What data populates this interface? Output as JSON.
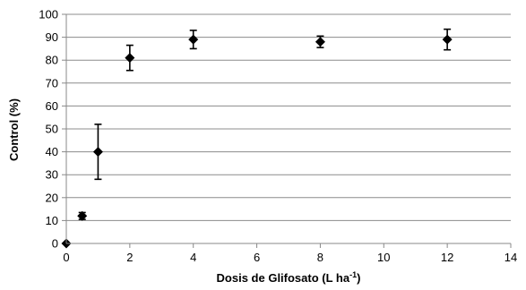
{
  "chart_data": {
    "type": "scatter",
    "title": "",
    "xlabel": "Dosis de Glifosato (L ha",
    "xlabel_sup": "-1",
    "xlabel_close": ")",
    "ylabel": "Control (%)",
    "xlim": [
      0,
      14
    ],
    "ylim": [
      0,
      100
    ],
    "xticks": [
      0,
      2,
      4,
      6,
      8,
      10,
      12,
      14
    ],
    "yticks": [
      0,
      10,
      20,
      30,
      40,
      50,
      60,
      70,
      80,
      90,
      100
    ],
    "grid": "horizontal",
    "marker": "diamond",
    "series": [
      {
        "x": [
          0,
          0.5,
          1,
          2,
          4,
          8,
          12
        ],
        "y": [
          0,
          12,
          40,
          81,
          89,
          88,
          89
        ],
        "yerr": [
          0,
          1.5,
          12,
          5.5,
          4,
          2.5,
          4.5
        ]
      }
    ]
  }
}
